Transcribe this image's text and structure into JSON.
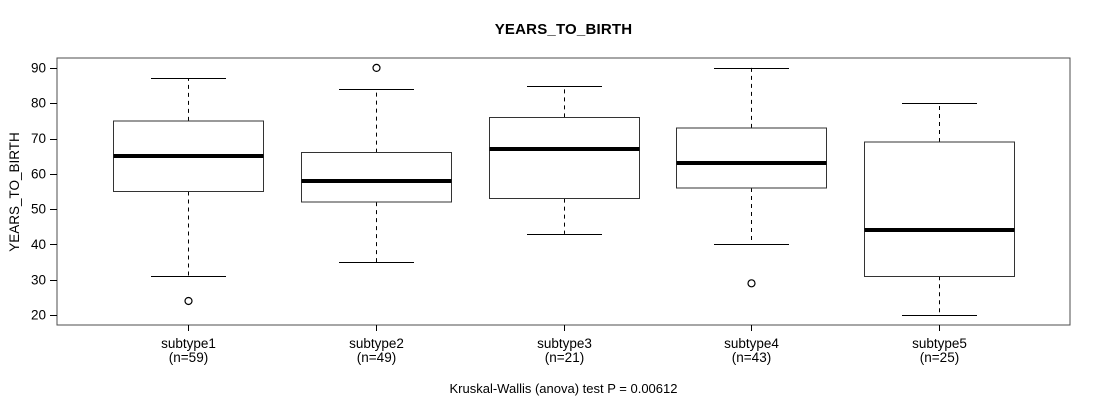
{
  "figure": {
    "title": "YEARS_TO_BIRTH",
    "y_axis_label": "YEARS_TO_BIRTH",
    "footer": "Kruskal-Wallis (anova) test P = 0.00612"
  },
  "chart_data": {
    "type": "boxplot",
    "title": "YEARS_TO_BIRTH",
    "xlabel": "",
    "ylabel": "YEARS_TO_BIRTH",
    "annotation": "Kruskal-Wallis (anova) test P = 0.00612",
    "grid": false,
    "legend": false,
    "ylim": [
      17.2,
      92.8
    ],
    "xlim": [
      0.3,
      5.7
    ],
    "y_ticks": [
      20,
      30,
      40,
      50,
      60,
      70,
      80,
      90
    ],
    "categories": [
      "subtype1",
      "subtype2",
      "subtype3",
      "subtype4",
      "subtype5"
    ],
    "groups": [
      {
        "label": "subtype1",
        "sublabel": "(n=59)",
        "n": 59,
        "lower_whisker": 31,
        "q1": 55,
        "median": 65,
        "q3": 75,
        "upper_whisker": 87,
        "outliers": [
          24
        ]
      },
      {
        "label": "subtype2",
        "sublabel": "(n=49)",
        "n": 49,
        "lower_whisker": 35,
        "q1": 52,
        "median": 58,
        "q3": 66,
        "upper_whisker": 84,
        "outliers": [
          90
        ]
      },
      {
        "label": "subtype3",
        "sublabel": "(n=21)",
        "n": 21,
        "lower_whisker": 43,
        "q1": 53,
        "median": 67,
        "q3": 76,
        "upper_whisker": 85,
        "outliers": []
      },
      {
        "label": "subtype4",
        "sublabel": "(n=43)",
        "n": 43,
        "lower_whisker": 40,
        "q1": 56,
        "median": 63,
        "q3": 73,
        "upper_whisker": 90,
        "outliers": [
          29
        ]
      },
      {
        "label": "subtype5",
        "sublabel": "(n=25)",
        "n": 25,
        "lower_whisker": 20,
        "q1": 31,
        "median": 44,
        "q3": 69,
        "upper_whisker": 80,
        "outliers": []
      }
    ],
    "box_width_data_units": 0.8,
    "cap_width_data_units": 0.4,
    "colors": {
      "background": "#ffffff",
      "box_fill": "#ffffff",
      "box_stroke": "#333333",
      "frame_stroke": "#4d4d4d",
      "line_stroke": "#000000",
      "median_stroke": "#000000",
      "text": "#000000"
    }
  }
}
